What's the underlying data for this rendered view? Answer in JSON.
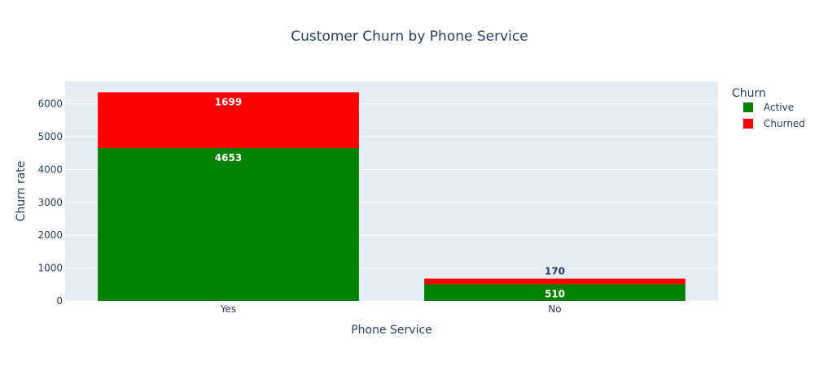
{
  "chart_data": {
    "type": "bar",
    "barmode": "stack",
    "title": "Customer Churn by Phone Service",
    "xlabel": "Phone Service",
    "ylabel": "Churn rate",
    "categories": [
      "Yes",
      "No"
    ],
    "ylim": [
      0,
      6686
    ],
    "yticks": [
      0,
      1000,
      2000,
      3000,
      4000,
      5000,
      6000
    ],
    "grid": true,
    "legend_title": "Churn",
    "legend_position": "top-right",
    "series": [
      {
        "name": "Active",
        "color": "#008000",
        "values": [
          4653,
          510
        ]
      },
      {
        "name": "Churned",
        "color": "#ff0000",
        "values": [
          1699,
          170
        ]
      }
    ]
  },
  "colors": {
    "plot_background": "#e5ecf6",
    "gridline": "#ffffff",
    "text": "#2a3f5f"
  }
}
